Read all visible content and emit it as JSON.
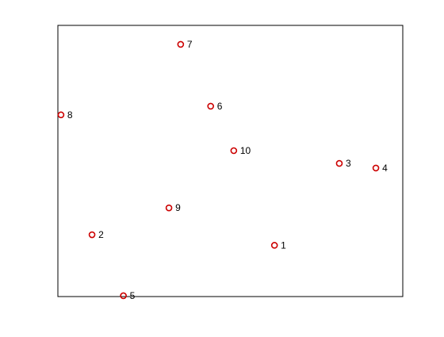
{
  "window": {
    "background": "#ffffff"
  },
  "chart_data": {
    "type": "scatter",
    "title": "",
    "xlabel": "",
    "ylabel": "",
    "grid": false,
    "legend": "none",
    "axis_ticks": "none",
    "box_color": "#000000",
    "marker": "circle",
    "marker_color": "#cc0000",
    "label_color": "#000000",
    "xlim": [
      0,
      1
    ],
    "ylim": [
      0,
      1
    ],
    "points": [
      {
        "label": "1",
        "x": 0.628,
        "y": 0.189
      },
      {
        "label": "2",
        "x": 0.099,
        "y": 0.228
      },
      {
        "label": "3",
        "x": 0.816,
        "y": 0.491
      },
      {
        "label": "4",
        "x": 0.922,
        "y": 0.474
      },
      {
        "label": "5",
        "x": 0.19,
        "y": 0.003
      },
      {
        "label": "6",
        "x": 0.443,
        "y": 0.702
      },
      {
        "label": "7",
        "x": 0.356,
        "y": 0.93
      },
      {
        "label": "8",
        "x": 0.009,
        "y": 0.67
      },
      {
        "label": "9",
        "x": 0.322,
        "y": 0.327
      },
      {
        "label": "10",
        "x": 0.51,
        "y": 0.538
      }
    ]
  }
}
